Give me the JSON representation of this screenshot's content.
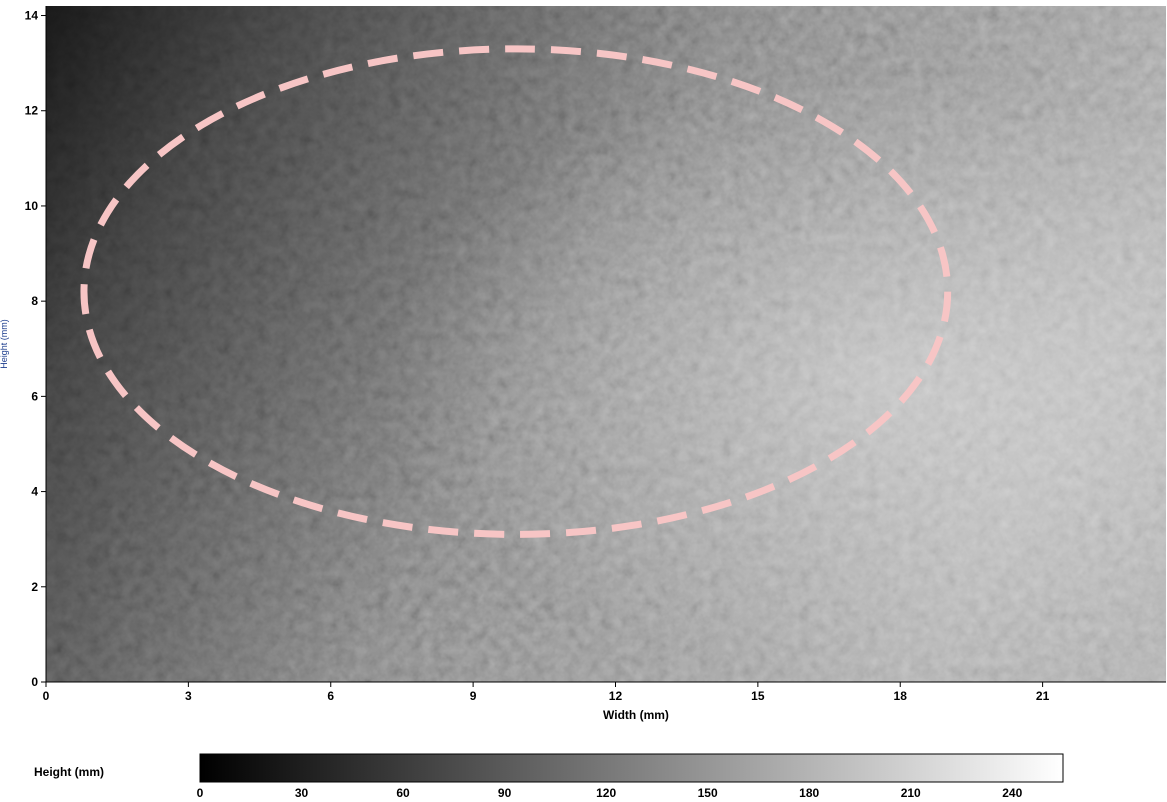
{
  "chart_data": {
    "type": "heatmap",
    "xlabel": "Width  (mm)",
    "ylabel": "Height  (mm)",
    "xlim": [
      0,
      23.6
    ],
    "ylim": [
      0,
      14.2
    ],
    "xticks": [
      0,
      3,
      6,
      9,
      12,
      15,
      18,
      21
    ],
    "yticks": [
      0,
      2,
      4,
      6,
      8,
      10,
      12,
      14
    ],
    "colormap": "gray",
    "grid": false,
    "colorbar": {
      "label": "Height  (mm)",
      "range": [
        0,
        255
      ],
      "ticks": [
        0,
        30,
        60,
        90,
        120,
        150,
        180,
        210,
        240
      ],
      "placement": "bottom"
    },
    "annotations": [
      {
        "type": "ellipse",
        "style": "dashed",
        "color": "#f7c5c5",
        "center": [
          9.9,
          8.2
        ],
        "rx": 9.1,
        "ry": 5.1,
        "rotation_deg": 0
      }
    ]
  }
}
